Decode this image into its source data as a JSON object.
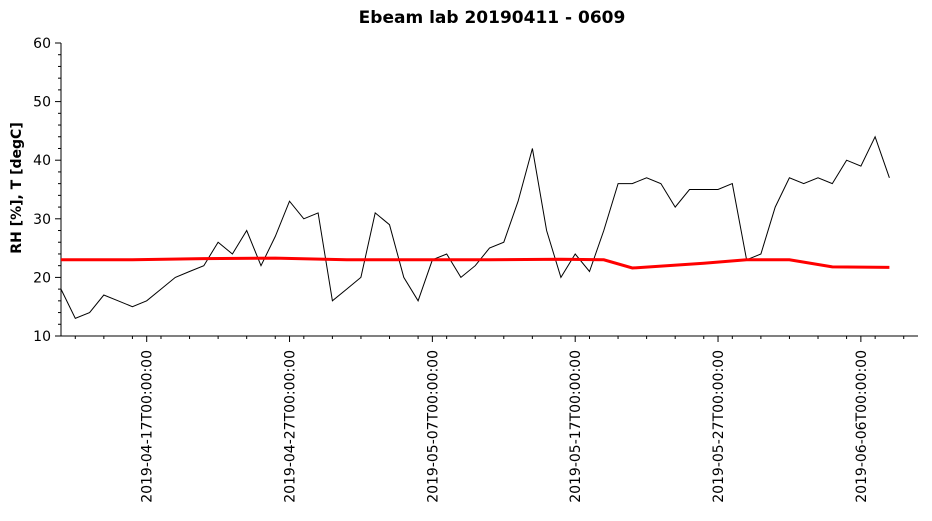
{
  "chart_data": {
    "type": "line",
    "title": "Ebeam lab 20190411 - 0609",
    "xlabel": "",
    "ylabel": "RH [%], T [degC]",
    "ylim": [
      10,
      60
    ],
    "xlim": [
      "2019-04-11T00:00:00",
      "2019-06-10T00:00:00"
    ],
    "y_ticks": [
      10,
      20,
      30,
      40,
      50,
      60
    ],
    "x_tick_labels": [
      "2019-04-17T00:00:00",
      "2019-04-27T00:00:00",
      "2019-05-07T00:00:00",
      "2019-05-17T00:00:00",
      "2019-05-27T00:00:00",
      "2019-06-06T00:00:00"
    ],
    "grid": false,
    "legend": "none",
    "series": [
      {
        "color": "#000000",
        "x": [
          "2019-04-11",
          "2019-04-12",
          "2019-04-13",
          "2019-04-14",
          "2019-04-15",
          "2019-04-16",
          "2019-04-17",
          "2019-04-18",
          "2019-04-19",
          "2019-04-20",
          "2019-04-21",
          "2019-04-22",
          "2019-04-23",
          "2019-04-24",
          "2019-04-25",
          "2019-04-26",
          "2019-04-27",
          "2019-04-28",
          "2019-04-29",
          "2019-04-30",
          "2019-05-01",
          "2019-05-02",
          "2019-05-03",
          "2019-05-04",
          "2019-05-05",
          "2019-05-06",
          "2019-05-07",
          "2019-05-08",
          "2019-05-09",
          "2019-05-10",
          "2019-05-11",
          "2019-05-12",
          "2019-05-13",
          "2019-05-14",
          "2019-05-15",
          "2019-05-16",
          "2019-05-17",
          "2019-05-18",
          "2019-05-19",
          "2019-05-20",
          "2019-05-21",
          "2019-05-22",
          "2019-05-23",
          "2019-05-24",
          "2019-05-25",
          "2019-05-26",
          "2019-05-27",
          "2019-05-28",
          "2019-05-29",
          "2019-05-30",
          "2019-05-31",
          "2019-06-01",
          "2019-06-02",
          "2019-06-03",
          "2019-06-04",
          "2019-06-05",
          "2019-06-06",
          "2019-06-07",
          "2019-06-08"
        ],
        "y": [
          18,
          13,
          14,
          17,
          16,
          15,
          16,
          18,
          20,
          21,
          22,
          26,
          24,
          28,
          22,
          27,
          33,
          30,
          31,
          16,
          18,
          20,
          31,
          29,
          20,
          16,
          23,
          24,
          20,
          22,
          25,
          26,
          33,
          42,
          28,
          20,
          24,
          21,
          28,
          36,
          36,
          37,
          36,
          32,
          35,
          35,
          35,
          36,
          23,
          24,
          32,
          37,
          36,
          37,
          36,
          40,
          39,
          44,
          37
        ]
      },
      {
        "color": "#ff0000",
        "x": [
          "2019-04-11",
          "2019-04-16",
          "2019-04-21",
          "2019-04-26",
          "2019-05-01",
          "2019-05-06",
          "2019-05-11",
          "2019-05-16",
          "2019-05-19",
          "2019-05-21",
          "2019-05-26",
          "2019-05-29",
          "2019-06-01",
          "2019-06-04",
          "2019-06-08"
        ],
        "y": [
          23,
          23,
          23.2,
          23.3,
          23,
          23,
          23,
          23.1,
          23,
          21.6,
          22.4,
          23,
          23,
          21.8,
          21.7
        ]
      }
    ]
  }
}
